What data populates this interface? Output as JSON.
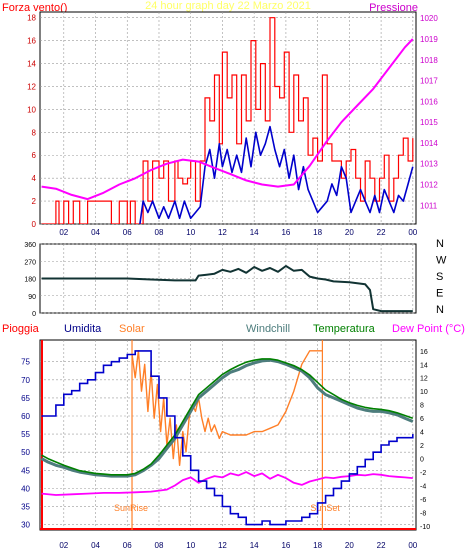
{
  "chart_data": [
    {
      "type": "line",
      "title": "24 hour graph day   22 Marzo 2021",
      "left_label": "Forza vento()",
      "right_label": "Pressione",
      "x_ticks": [
        "02",
        "04",
        "06",
        "08",
        "10",
        "12",
        "14",
        "16",
        "18",
        "20",
        "22",
        "00"
      ],
      "y_left_ticks": [
        "0",
        "2",
        "4",
        "6",
        "8",
        "10",
        "12",
        "14",
        "16",
        "18"
      ],
      "y_right_ticks": [
        "1011",
        "1012",
        "1013",
        "1014",
        "1015",
        "1016",
        "1017",
        "1018",
        "1019",
        "1020"
      ],
      "y_left_range": [
        0,
        18.5
      ],
      "y_right_range": [
        1010.1,
        1020.3
      ],
      "x_range": [
        0.5,
        24.2
      ],
      "grid": true,
      "series": [
        {
          "role": "gust",
          "color": "#ff0000",
          "x": [
            0.6,
            1.3,
            1.5,
            1.7,
            2.0,
            2.3,
            2.6,
            3.0,
            3.5,
            4.0,
            4.5,
            5.0,
            5.5,
            6.0,
            6.2,
            6.5,
            6.8,
            7.0,
            7.3,
            7.6,
            8.0,
            8.3,
            8.6,
            9.0,
            9.2,
            9.5,
            9.8,
            10.0,
            10.3,
            10.6,
            10.9,
            11.2,
            11.5,
            11.8,
            12.0,
            12.3,
            12.6,
            12.9,
            13.2,
            13.5,
            13.8,
            14.1,
            14.4,
            14.7,
            15.0,
            15.3,
            15.6,
            15.9,
            16.2,
            16.5,
            16.8,
            17.1,
            17.4,
            17.7,
            18.0,
            18.3,
            18.6,
            18.9,
            19.2,
            19.5,
            19.8,
            20.1,
            20.4,
            20.7,
            21.0,
            21.3,
            21.6,
            21.9,
            22.2,
            22.5,
            22.8,
            23.1,
            23.4,
            23.7,
            24.0
          ],
          "values": [
            0,
            0,
            2,
            0,
            2,
            0,
            2,
            0,
            2,
            2,
            2,
            0,
            2,
            0,
            2,
            0,
            0,
            5.5,
            2,
            5.5,
            4,
            5.5,
            2,
            5.5,
            4,
            3.5,
            4,
            5.5,
            2,
            5.5,
            11,
            9,
            13,
            7,
            15,
            11,
            13,
            7,
            13,
            9,
            16,
            10,
            14,
            9,
            18,
            12,
            11,
            15,
            8,
            13,
            9,
            11,
            6,
            7.5,
            5.5,
            13,
            7,
            5.5,
            5.5,
            4,
            5.5,
            6.5,
            4,
            2,
            5.5,
            4,
            2,
            4,
            6,
            2,
            4,
            6,
            7.5,
            5.5,
            7.5
          ]
        },
        {
          "role": "average",
          "color": "#0000cc",
          "x": [
            6.8,
            7.0,
            7.3,
            7.6,
            8.0,
            8.3,
            8.6,
            9.0,
            9.3,
            9.6,
            10.0,
            10.3,
            10.6,
            10.9,
            11.2,
            11.5,
            11.8,
            12.0,
            12.3,
            12.6,
            12.9,
            13.2,
            13.5,
            13.8,
            14.1,
            14.4,
            14.7,
            15.0,
            15.3,
            15.6,
            15.9,
            16.2,
            16.5,
            16.8,
            17.1,
            17.4,
            17.7,
            18.0,
            18.3,
            18.6,
            18.9,
            19.2,
            19.5,
            19.8,
            20.1,
            20.4,
            20.7,
            21.0,
            21.3,
            21.6,
            21.9,
            22.2,
            22.5,
            22.8,
            23.1,
            23.4,
            23.7,
            24.0
          ],
          "values": [
            0,
            2,
            1,
            2,
            0.5,
            1.5,
            0.5,
            2,
            0.5,
            2,
            0.5,
            1,
            1.5,
            5,
            6.5,
            4,
            7,
            5,
            6.5,
            4.5,
            6,
            4.5,
            7.5,
            5,
            8,
            6,
            7,
            8.5,
            6.5,
            5,
            6.5,
            4,
            6,
            3,
            5,
            3,
            2,
            1,
            1.5,
            2,
            3.5,
            2.5,
            5,
            4,
            1,
            2,
            3,
            2,
            1,
            2.5,
            1,
            3,
            2,
            1,
            2.5,
            2,
            3.5,
            5
          ]
        },
        {
          "role": "pressure",
          "color": "#ff00ff",
          "axis": "right",
          "x": [
            0.6,
            1.5,
            2.5,
            3.5,
            4.5,
            5.5,
            6.5,
            7.5,
            8.5,
            9.5,
            10.5,
            11.5,
            12.5,
            13.5,
            14.5,
            15.5,
            16.5,
            17.5,
            18.5,
            19.5,
            20.5,
            21.5,
            22.5,
            23.5,
            24.0
          ],
          "values": [
            1011.9,
            1011.8,
            1011.5,
            1011.3,
            1011.6,
            1012.0,
            1012.3,
            1012.7,
            1013.0,
            1013.2,
            1013.1,
            1012.8,
            1012.5,
            1012.2,
            1012.0,
            1011.9,
            1012.0,
            1012.9,
            1014.0,
            1015.0,
            1015.8,
            1016.6,
            1017.6,
            1018.6,
            1019.0
          ]
        }
      ]
    },
    {
      "type": "line",
      "y_left_ticks": [
        "0",
        "90",
        "180",
        "270",
        "360"
      ],
      "y_right_ticks": [
        "N",
        "E",
        "S",
        "W",
        "N"
      ],
      "y_range": [
        0,
        360
      ],
      "x_range": [
        0.5,
        24.2
      ],
      "grid": true,
      "series": [
        {
          "role": "wind-direction",
          "color": "#113333",
          "x": [
            0.6,
            2,
            4,
            6,
            7.5,
            9,
            10.3,
            10.5,
            11,
            11.5,
            12,
            12.5,
            13,
            13.5,
            14,
            14.5,
            15,
            15.5,
            16,
            16.5,
            17,
            17.5,
            18,
            18.5,
            19,
            20,
            21,
            21.3,
            21.5,
            22,
            23,
            24
          ],
          "values": [
            180,
            180,
            180,
            180,
            175,
            170,
            170,
            195,
            200,
            205,
            225,
            215,
            230,
            210,
            240,
            220,
            235,
            215,
            245,
            220,
            225,
            190,
            180,
            175,
            165,
            160,
            150,
            120,
            20,
            10,
            10,
            10
          ]
        }
      ]
    },
    {
      "type": "line",
      "labels": {
        "pioggia": "Pioggia",
        "umidita": "Umidita",
        "solar": "Solar",
        "windchill": "Windchill",
        "temperatura": "Temperatura",
        "dewpoint": "Dew Point (°C)",
        "sunrise": "SunRise",
        "sunset": "SunSet"
      },
      "colors": {
        "pioggia": "#ff0000",
        "umidita": "#000088",
        "solar": "#ff7f27",
        "windchill": "#4d7d7d",
        "temperatura": "#008000",
        "dewpoint": "#ff00ff"
      },
      "x_ticks": [
        "02",
        "04",
        "06",
        "08",
        "10",
        "12",
        "14",
        "16",
        "18",
        "20",
        "22",
        "00"
      ],
      "y_left_ticks": [
        "30",
        "35",
        "40",
        "45",
        "50",
        "55",
        "60",
        "65",
        "70",
        "75"
      ],
      "y_right_ticks": [
        "-10",
        "-8",
        "-6",
        "-4",
        "-2",
        "0",
        "2",
        "4",
        "6",
        "8",
        "10",
        "12",
        "14",
        "16"
      ],
      "y_left_range": [
        28.5,
        81
      ],
      "y_right_range": [
        -10.6,
        17.6
      ],
      "x_range": [
        0.5,
        24.2
      ],
      "sunrise_hour": 6.3,
      "sunset_hour": 18.3,
      "grid": true,
      "series": [
        {
          "role": "humidity",
          "color": "#0000cc",
          "x": [
            0.6,
            1,
            1.5,
            2,
            2.5,
            3,
            3.5,
            4,
            4.5,
            5,
            5.5,
            6,
            6.5,
            7,
            7.5,
            8,
            8.5,
            9,
            9.5,
            10,
            10.5,
            11,
            11.5,
            12,
            12.5,
            13,
            13.5,
            14,
            14.5,
            15,
            15.5,
            16,
            16.5,
            17,
            17.5,
            18,
            18.5,
            19,
            19.5,
            20,
            20.5,
            21,
            21.5,
            22,
            22.5,
            23,
            23.5,
            24
          ],
          "values": [
            60,
            60,
            63,
            66,
            67,
            69,
            70,
            72,
            74,
            75,
            76,
            77,
            78,
            78,
            71,
            65,
            60,
            54,
            49,
            45,
            42,
            40,
            38,
            35,
            33,
            32,
            30,
            30,
            31,
            30,
            30,
            31,
            31,
            32,
            33,
            36,
            38,
            40,
            42,
            44,
            46,
            48,
            50,
            52,
            53,
            54,
            54,
            55
          ]
        },
        {
          "role": "solar",
          "color": "#ff7f27",
          "x": [
            6.3,
            6.5,
            6.7,
            6.9,
            7.1,
            7.3,
            7.5,
            7.7,
            7.9,
            8.1,
            8.3,
            8.5,
            8.7,
            8.9,
            9.1,
            9.3,
            9.5,
            9.7,
            9.9,
            10.1,
            10.3,
            10.5,
            10.7,
            10.9,
            11.1,
            11.3,
            11.5,
            11.8,
            12,
            12.5,
            13,
            13.5,
            14,
            14.5,
            15,
            15.5,
            16,
            16.5,
            17,
            17.5,
            18,
            18.3
          ],
          "values": [
            15.5,
            12,
            16,
            10,
            14,
            7,
            13,
            6,
            11,
            4,
            9,
            2,
            6,
            0,
            5,
            -1,
            4,
            1,
            6,
            8,
            7,
            9,
            6,
            4,
            6,
            4,
            5,
            3,
            4,
            3.5,
            3.5,
            3.5,
            4,
            4,
            4.5,
            5,
            7,
            10,
            14,
            16,
            16,
            16
          ]
        },
        {
          "role": "windchill",
          "color": "#4d7d7d",
          "x": [
            0.6,
            1,
            1.5,
            2,
            2.5,
            3,
            3.5,
            4,
            4.5,
            5,
            5.5,
            6,
            6.5,
            7,
            7.5,
            8,
            8.5,
            9,
            9.5,
            10,
            10.5,
            11,
            11.5,
            12,
            12.5,
            13,
            13.5,
            14,
            14.5,
            15,
            15.5,
            16,
            16.5,
            17,
            17.5,
            18,
            18.5,
            19,
            19.5,
            20,
            20.5,
            21,
            21.5,
            22,
            22.5,
            23,
            23.5,
            24
          ],
          "values": [
            0,
            -0.5,
            -1,
            -1.3,
            -1.7,
            -2,
            -2.2,
            -2.4,
            -2.5,
            -2.6,
            -2.6,
            -2.6,
            -2.4,
            -1.8,
            -1,
            0,
            1.5,
            3,
            5,
            7,
            9,
            10,
            11,
            12,
            12.8,
            13.2,
            13.8,
            14.2,
            14.5,
            14.6,
            14.4,
            14,
            13.5,
            13,
            12,
            10.5,
            9.5,
            9,
            8.5,
            8,
            7.5,
            7.2,
            7,
            7,
            6.8,
            6.5,
            6,
            5.5
          ]
        },
        {
          "role": "temperature",
          "color": "#008000",
          "x": [
            0.6,
            1,
            1.5,
            2,
            2.5,
            3,
            3.5,
            4,
            4.5,
            5,
            5.5,
            6,
            6.5,
            7,
            7.5,
            8,
            8.5,
            9,
            9.5,
            10,
            10.5,
            11,
            11.5,
            12,
            12.5,
            13,
            13.5,
            14,
            14.5,
            15,
            15.5,
            16,
            16.5,
            17,
            17.5,
            18,
            18.5,
            19,
            19.5,
            20,
            20.5,
            21,
            21.5,
            22,
            22.5,
            23,
            23.5,
            24
          ],
          "values": [
            0.5,
            0,
            -0.5,
            -1,
            -1.4,
            -1.8,
            -2,
            -2.2,
            -2.3,
            -2.4,
            -2.4,
            -2.4,
            -2.2,
            -1.6,
            -0.8,
            0.5,
            2,
            3.5,
            5.5,
            7.5,
            9.5,
            10.5,
            11.5,
            12.5,
            13.2,
            13.8,
            14.3,
            14.6,
            14.8,
            14.8,
            14.6,
            14.2,
            13.8,
            13.2,
            12.4,
            11.3,
            10.2,
            9.5,
            8.8,
            8.3,
            7.9,
            7.6,
            7.4,
            7.3,
            7.1,
            6.8,
            6.4,
            6
          ]
        },
        {
          "role": "dewpoint",
          "color": "#ff00ff",
          "x": [
            0.6,
            1.5,
            2.5,
            3.5,
            4.5,
            5.5,
            6.5,
            7.5,
            8.5,
            9,
            9.5,
            10,
            10.5,
            11,
            11.5,
            12,
            12.5,
            13,
            13.5,
            14,
            14.5,
            15,
            15.5,
            16,
            16.5,
            17,
            17.5,
            18,
            18.5,
            19,
            19.5,
            20,
            20.5,
            21,
            21.5,
            22,
            22.5,
            23,
            23.5,
            24
          ],
          "values": [
            -5.2,
            -5.4,
            -5.3,
            -5.2,
            -5.1,
            -5.1,
            -5.0,
            -4.9,
            -4.6,
            -4.0,
            -3.2,
            -2.8,
            -3.6,
            -3.0,
            -2.6,
            -2.8,
            -2.2,
            -2.5,
            -2.0,
            -2.6,
            -2.2,
            -3.0,
            -2.4,
            -2.9,
            -3.6,
            -3.9,
            -3.4,
            -3.1,
            -2.8,
            -2.9,
            -2.7,
            -2.6,
            -2.4,
            -2.5,
            -2.3,
            -2.4,
            -2.6,
            -2.7,
            -2.8,
            -2.9
          ]
        }
      ]
    }
  ]
}
